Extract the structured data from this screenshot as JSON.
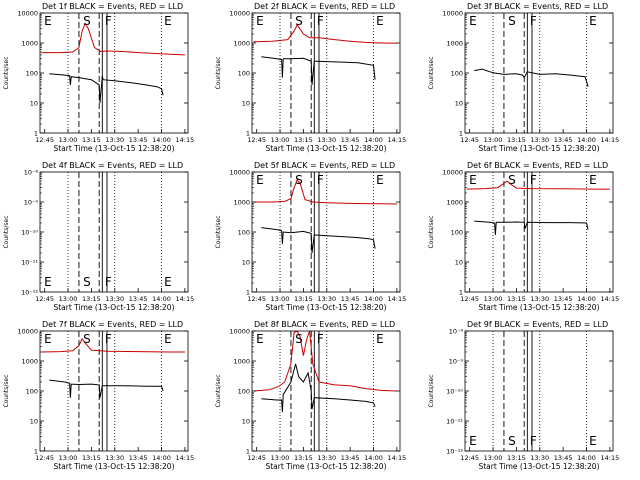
{
  "colors": {
    "events": "#000000",
    "lld": "#cc0000",
    "axes": "#000000",
    "background": "#ffffff"
  },
  "chart_data": {
    "type": "line",
    "xlabel": "Start Time (13-Oct-15 12:38:20)",
    "ylabel": "Counts/sec",
    "x_ticks": [
      "12:45",
      "13:00",
      "13:15",
      "13:30",
      "13:45",
      "14:00",
      "14:15"
    ],
    "x_range_minutes_after_1245": [
      -3,
      92
    ],
    "dotted_lines_minutes": [
      15,
      45,
      75
    ],
    "dashed_lines_minutes": [
      22,
      35
    ],
    "solid_lines_minutes": [
      37,
      40
    ],
    "markers": [
      {
        "label": "E",
        "minute": -1
      },
      {
        "label": "S",
        "minute": 24
      },
      {
        "label": "F",
        "minute": 38
      },
      {
        "label": "E",
        "minute": 76
      }
    ],
    "legend": "BLACK = Events, RED = LLD",
    "panels": [
      {
        "title": "Det 1f BLACK = Events, RED = LLD",
        "y_ticks": [
          "1",
          "10",
          "100",
          "1000",
          "10000"
        ],
        "y_log_range": [
          0,
          4
        ],
        "lld": [
          [
            -2,
            480
          ],
          [
            10,
            480
          ],
          [
            18,
            500
          ],
          [
            22,
            700
          ],
          [
            24,
            2500
          ],
          [
            26,
            4500
          ],
          [
            28,
            3000
          ],
          [
            32,
            700
          ],
          [
            36,
            520
          ],
          [
            40,
            540
          ],
          [
            50,
            520
          ],
          [
            60,
            480
          ],
          [
            70,
            450
          ],
          [
            80,
            420
          ],
          [
            90,
            400
          ]
        ],
        "events": [
          [
            3,
            95
          ],
          [
            13,
            85
          ],
          [
            16,
            82
          ],
          [
            16.5,
            40
          ],
          [
            17,
            75
          ],
          [
            22,
            70
          ],
          [
            30,
            60
          ],
          [
            35,
            40
          ],
          [
            35.5,
            10
          ],
          [
            37,
            80
          ],
          [
            37.5,
            60
          ],
          [
            45,
            55
          ],
          [
            55,
            48
          ],
          [
            65,
            40
          ],
          [
            72,
            35
          ],
          [
            75,
            30
          ],
          [
            76,
            18
          ]
        ]
      },
      {
        "title": "Det 2f BLACK = Events, RED = LLD",
        "y_ticks": [
          "1",
          "10",
          "100",
          "1000",
          "10000"
        ],
        "y_log_range": [
          0,
          4
        ],
        "lld": [
          [
            -2,
            1100
          ],
          [
            10,
            1150
          ],
          [
            20,
            1300
          ],
          [
            24,
            2500
          ],
          [
            26,
            4000
          ],
          [
            30,
            2000
          ],
          [
            34,
            1500
          ],
          [
            40,
            1500
          ],
          [
            50,
            1300
          ],
          [
            60,
            1150
          ],
          [
            70,
            1050
          ],
          [
            80,
            1000
          ],
          [
            90,
            980
          ]
        ],
        "events": [
          [
            3,
            350
          ],
          [
            13,
            300
          ],
          [
            16,
            280
          ],
          [
            16.5,
            70
          ],
          [
            17,
            300
          ],
          [
            22,
            300
          ],
          [
            30,
            310
          ],
          [
            35,
            250
          ],
          [
            35.5,
            40
          ],
          [
            37,
            250
          ],
          [
            45,
            240
          ],
          [
            55,
            230
          ],
          [
            65,
            220
          ],
          [
            75,
            180
          ],
          [
            76,
            60
          ]
        ]
      },
      {
        "title": "Det 3f BLACK = Events, RED = LLD",
        "y_ticks": [
          "1",
          "10",
          "100",
          "1000",
          "10000"
        ],
        "y_log_range": [
          0,
          4
        ],
        "lld": [],
        "events": [
          [
            3,
            120
          ],
          [
            8,
            135
          ],
          [
            13,
            110
          ],
          [
            16,
            100
          ],
          [
            22,
            90
          ],
          [
            30,
            95
          ],
          [
            34,
            85
          ],
          [
            35,
            70
          ],
          [
            37,
            110
          ],
          [
            45,
            90
          ],
          [
            55,
            95
          ],
          [
            65,
            85
          ],
          [
            74,
            75
          ],
          [
            76,
            35
          ]
        ]
      },
      {
        "title": "Det 4f BLACK = Events, RED = LLD",
        "y_ticks": [
          "10⁻¹²",
          "10⁻¹¹",
          "10⁻¹⁰",
          "10⁻⁹",
          "10⁻⁸"
        ],
        "y_log_range": [
          -12,
          -8
        ],
        "lld": [],
        "events": []
      },
      {
        "title": "Det 5f BLACK = Events, RED = LLD",
        "y_ticks": [
          "1",
          "10",
          "100",
          "1000",
          "10000"
        ],
        "y_log_range": [
          0,
          4
        ],
        "lld": [
          [
            -2,
            1000
          ],
          [
            10,
            1000
          ],
          [
            18,
            1050
          ],
          [
            22,
            1300
          ],
          [
            24,
            3000
          ],
          [
            26,
            5500
          ],
          [
            28,
            4000
          ],
          [
            31,
            1200
          ],
          [
            36,
            1000
          ],
          [
            45,
            950
          ],
          [
            60,
            900
          ],
          [
            75,
            880
          ],
          [
            90,
            860
          ]
        ],
        "events": [
          [
            3,
            140
          ],
          [
            13,
            120
          ],
          [
            16,
            110
          ],
          [
            16.5,
            40
          ],
          [
            17,
            100
          ],
          [
            22,
            95
          ],
          [
            30,
            105
          ],
          [
            35,
            90
          ],
          [
            35.5,
            20
          ],
          [
            37,
            80
          ],
          [
            45,
            75
          ],
          [
            55,
            70
          ],
          [
            65,
            65
          ],
          [
            72,
            60
          ],
          [
            75,
            55
          ],
          [
            76,
            28
          ]
        ]
      },
      {
        "title": "Det 6f BLACK = Events, RED = LLD",
        "y_ticks": [
          "1",
          "10",
          "100",
          "1000",
          "10000"
        ],
        "y_log_range": [
          0,
          4
        ],
        "lld": [
          [
            -2,
            2700
          ],
          [
            10,
            2800
          ],
          [
            18,
            3000
          ],
          [
            22,
            4200
          ],
          [
            24,
            5000
          ],
          [
            26,
            4000
          ],
          [
            30,
            2900
          ],
          [
            40,
            2800
          ],
          [
            60,
            2750
          ],
          [
            80,
            2700
          ],
          [
            90,
            2700
          ]
        ],
        "events": [
          [
            3,
            230
          ],
          [
            13,
            210
          ],
          [
            16,
            200
          ],
          [
            16.5,
            80
          ],
          [
            17,
            210
          ],
          [
            22,
            210
          ],
          [
            30,
            215
          ],
          [
            35,
            210
          ],
          [
            35.5,
            130
          ],
          [
            37,
            210
          ],
          [
            50,
            205
          ],
          [
            65,
            205
          ],
          [
            75,
            200
          ],
          [
            76,
            120
          ]
        ]
      },
      {
        "title": "Det 7f BLACK = Events, RED = LLD",
        "y_ticks": [
          "1",
          "10",
          "100",
          "1000",
          "10000"
        ],
        "y_log_range": [
          0,
          4
        ],
        "lld": [
          [
            -2,
            2000
          ],
          [
            10,
            2050
          ],
          [
            18,
            2200
          ],
          [
            22,
            3200
          ],
          [
            24,
            5500
          ],
          [
            26,
            4000
          ],
          [
            30,
            2300
          ],
          [
            40,
            2100
          ],
          [
            60,
            2050
          ],
          [
            80,
            2000
          ],
          [
            90,
            2000
          ]
        ],
        "events": [
          [
            3,
            230
          ],
          [
            13,
            200
          ],
          [
            16,
            180
          ],
          [
            16.5,
            60
          ],
          [
            17,
            170
          ],
          [
            22,
            165
          ],
          [
            30,
            170
          ],
          [
            35,
            160
          ],
          [
            35.5,
            60
          ],
          [
            37,
            150
          ],
          [
            50,
            150
          ],
          [
            65,
            145
          ],
          [
            75,
            145
          ],
          [
            76,
            100
          ]
        ]
      },
      {
        "title": "Det 8f BLACK = Events, RED = LLD",
        "y_ticks": [
          "1",
          "10",
          "100",
          "1000",
          "10000"
        ],
        "y_log_range": [
          0,
          4
        ],
        "lld": [
          [
            -2,
            100
          ],
          [
            8,
            110
          ],
          [
            14,
            140
          ],
          [
            18,
            200
          ],
          [
            22,
            800
          ],
          [
            24,
            9000
          ],
          [
            26,
            12000
          ],
          [
            28,
            6000
          ],
          [
            30,
            1500
          ],
          [
            32,
            5000
          ],
          [
            34,
            12000
          ],
          [
            36,
            800
          ],
          [
            40,
            200
          ],
          [
            50,
            160
          ],
          [
            60,
            150
          ],
          [
            70,
            120
          ],
          [
            80,
            105
          ],
          [
            90,
            100
          ]
        ],
        "events": [
          [
            3,
            55
          ],
          [
            13,
            50
          ],
          [
            16,
            50
          ],
          [
            16.5,
            20
          ],
          [
            17,
            75
          ],
          [
            22,
            200
          ],
          [
            25,
            800
          ],
          [
            27,
            300
          ],
          [
            30,
            200
          ],
          [
            33,
            400
          ],
          [
            35,
            100
          ],
          [
            35.5,
            25
          ],
          [
            37,
            60
          ],
          [
            50,
            55
          ],
          [
            60,
            50
          ],
          [
            70,
            45
          ],
          [
            75,
            40
          ],
          [
            76,
            30
          ]
        ]
      },
      {
        "title": "Det 9f BLACK = Events, RED = LLD",
        "y_ticks": [
          "10⁻¹²",
          "10⁻¹¹",
          "10⁻¹⁰",
          "10⁻⁹",
          "10⁻⁸"
        ],
        "y_log_range": [
          -12,
          -8
        ],
        "lld": [],
        "events": []
      }
    ]
  }
}
